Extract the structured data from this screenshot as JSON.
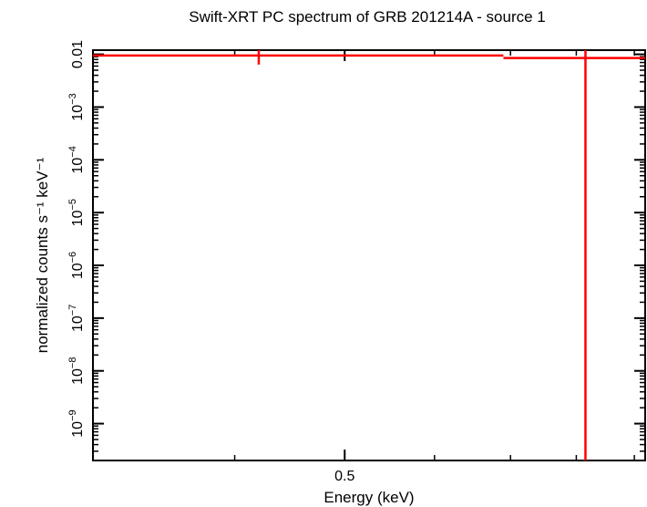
{
  "chart_data": {
    "type": "scatter",
    "title": "Swift-XRT PC spectrum of GRB 201214A - source 1",
    "xlabel": "Energy (keV)",
    "ylabel": "normalized counts s⁻¹ keV⁻¹",
    "x_scale": "log",
    "y_scale": "log",
    "xlim": [
      0.3,
      0.92
    ],
    "ylim": [
      2e-10,
      0.012
    ],
    "x_ticks": [
      {
        "value": 0.5,
        "label": "0.5"
      }
    ],
    "y_ticks": [
      {
        "value": 0.01,
        "label": "0.01"
      },
      {
        "value": 0.001,
        "base": "10",
        "exp": "−3"
      },
      {
        "value": 0.0001,
        "base": "10",
        "exp": "−4"
      },
      {
        "value": 1e-05,
        "base": "10",
        "exp": "−5"
      },
      {
        "value": 1e-06,
        "base": "10",
        "exp": "−6"
      },
      {
        "value": 1e-07,
        "base": "10",
        "exp": "−7"
      },
      {
        "value": 1e-08,
        "base": "10",
        "exp": "−8"
      },
      {
        "value": 1e-09,
        "base": "10",
        "exp": "−9"
      }
    ],
    "grid": false,
    "series": [
      {
        "color": "#ff0000",
        "points": [
          {
            "x": 0.42,
            "y": 0.0095,
            "xerr_low": 0.3,
            "xerr_high": 0.69,
            "yerr_low": 0.0064,
            "yerr_high": 0.012
          },
          {
            "x": 0.815,
            "y": 0.0085,
            "xerr_low": 0.69,
            "xerr_high": 0.92,
            "yerr_low": 2e-10,
            "yerr_high": 0.012
          }
        ]
      }
    ]
  }
}
